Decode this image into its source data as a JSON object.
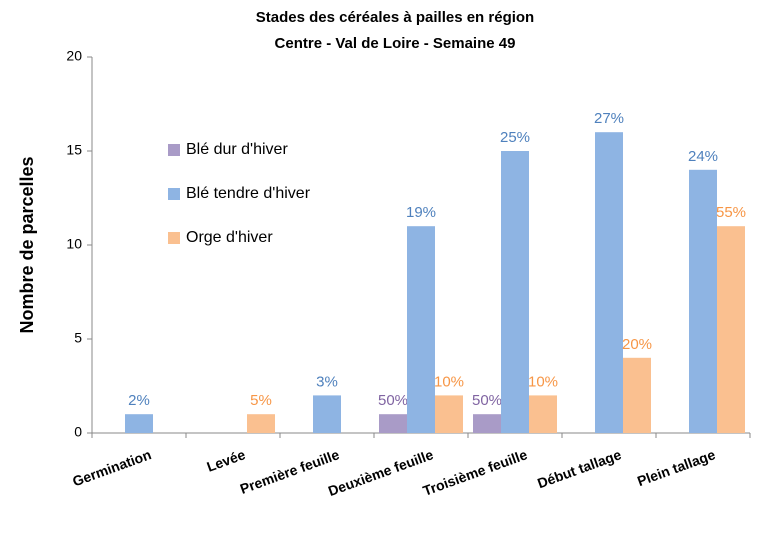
{
  "chart_data": {
    "type": "bar",
    "title": [
      "Stades des céréales à pailles en région",
      "Centre - Val de Loire - Semaine 49"
    ],
    "y_label": "Nombre de parcelles",
    "categories": [
      "Germination",
      "Levée",
      "Première feuille",
      "Deuxième feuille",
      "Troisième feuille",
      "Début tallage",
      "Plein tallage"
    ],
    "series": [
      {
        "name": "Blé dur d'hiver",
        "color": "#a99bc7",
        "label_color": "#8064a2",
        "values": [
          0,
          0,
          0,
          1,
          1,
          0,
          0
        ],
        "share_labels": [
          null,
          null,
          null,
          "50%",
          "50%",
          null,
          null
        ]
      },
      {
        "name": "Blé tendre d'hiver",
        "color": "#8eb4e3",
        "label_color": "#4f81bd",
        "values": [
          1,
          0,
          2,
          11,
          15,
          16,
          14
        ],
        "share_labels": [
          "2%",
          null,
          "3%",
          "19%",
          "25%",
          "27%",
          "24%"
        ]
      },
      {
        "name": "Orge d'hiver",
        "color": "#fac090",
        "label_color": "#f79646",
        "values": [
          0,
          1,
          0,
          2,
          2,
          4,
          11
        ],
        "share_labels": [
          null,
          "5%",
          null,
          "10%",
          "10%",
          "20%",
          "55%"
        ]
      }
    ],
    "ylim": [
      0,
      20
    ],
    "yticks": [
      0,
      5,
      10,
      15,
      20
    ],
    "grid": false,
    "legend": "upper left"
  }
}
